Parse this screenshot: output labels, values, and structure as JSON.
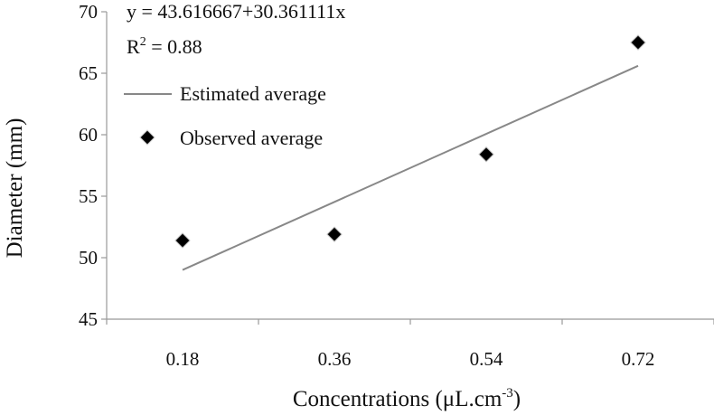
{
  "chart_data": {
    "type": "scatter",
    "title": "",
    "xlabel": "Concentrations (μL.cm",
    "xlabel_sup": "-3",
    "xlabel_end": ")",
    "ylabel": "Diameter (mm)",
    "x_categories": [
      "0.18",
      "0.36",
      "0.54",
      "0.72"
    ],
    "ylim": [
      45,
      70
    ],
    "y_ticks": [
      45,
      50,
      55,
      60,
      65,
      70
    ],
    "grid": false,
    "series": [
      {
        "name": "Observed average",
        "type": "scatter",
        "marker": "diamond",
        "color": "#000000",
        "x": [
          "0.18",
          "0.36",
          "0.54",
          "0.72"
        ],
        "values": [
          51.4,
          51.9,
          58.4,
          67.5
        ]
      },
      {
        "name": "Estimated average",
        "type": "line",
        "color": "#888888",
        "x": [
          "0.18",
          "0.72"
        ],
        "values": [
          49.0,
          65.6
        ]
      }
    ],
    "annotations": {
      "equation": "y = 43.616667+30.361111x",
      "r2_label": "R",
      "r2_sup": "2",
      "r2_value": " = 0.88"
    },
    "legend": {
      "position": "top-left",
      "entries": [
        "Estimated average",
        "Observed average"
      ]
    }
  }
}
